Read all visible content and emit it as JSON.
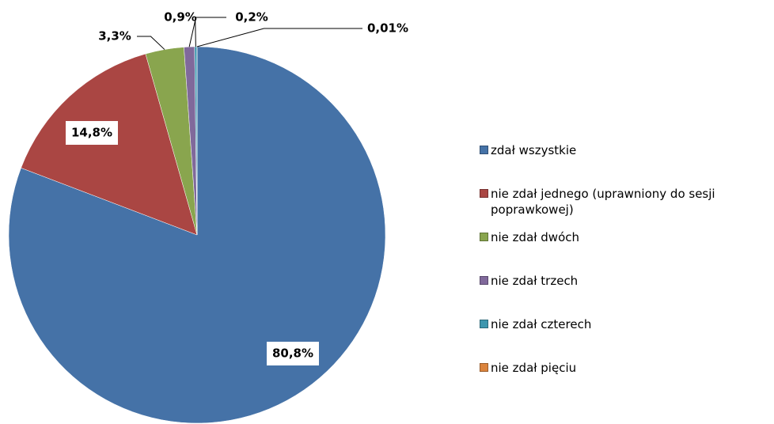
{
  "chart_data": {
    "type": "pie",
    "categories": [
      "zdał wszystkie",
      "nie zdał jednego (uprawniony do sesji poprawkowej)",
      "nie zdał dwóch",
      "nie zdał trzech",
      "nie zdał czterech",
      "nie zdał pięciu"
    ],
    "values": [
      80.8,
      14.8,
      3.3,
      0.9,
      0.2,
      0.01
    ],
    "value_labels": [
      "80,8%",
      "14,8%",
      "3,3%",
      "0,9%",
      "0,2%",
      "0,01%"
    ],
    "colors": [
      "#4572a7",
      "#aa4643",
      "#89a54e",
      "#80699b",
      "#3d96ae",
      "#db843d"
    ],
    "legend": "right"
  }
}
